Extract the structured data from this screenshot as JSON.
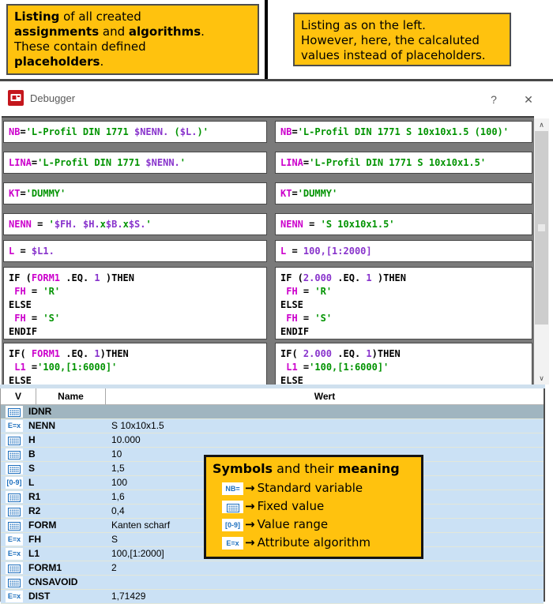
{
  "callouts": {
    "left": {
      "segments": [
        {
          "b": 1,
          "t": "Listing"
        },
        {
          "b": 0,
          "t": " of all created\n"
        },
        {
          "b": 1,
          "t": "assignments"
        },
        {
          "b": 0,
          "t": " and "
        },
        {
          "b": 1,
          "t": "algorithms"
        },
        {
          "b": 0,
          "t": ".\nThese contain defined\n"
        },
        {
          "b": 1,
          "t": "placeholders"
        },
        {
          "b": 0,
          "t": "."
        }
      ]
    },
    "right": {
      "segments": [
        {
          "b": 0,
          "t": "Listing as on the left.\nHowever, here, the calcaluted\nvalues instead of placeholders."
        }
      ]
    }
  },
  "window": {
    "title": "Debugger",
    "help_label": "?",
    "close_label": "✕"
  },
  "scrollbar": {
    "up": "∧",
    "down": "∨"
  },
  "code": {
    "rows": [
      {
        "left": [
          {
            "c": "v",
            "t": "NB"
          },
          {
            "c": "d",
            "t": "="
          },
          {
            "c": "s",
            "t": "'L-Profil DIN 1771 "
          },
          {
            "c": "p",
            "t": "$NENN."
          },
          {
            "c": "s",
            "t": " ("
          },
          {
            "c": "p",
            "t": "$L."
          },
          {
            "c": "s",
            "t": ")'"
          }
        ],
        "right": [
          {
            "c": "v",
            "t": "NB"
          },
          {
            "c": "d",
            "t": "="
          },
          {
            "c": "s",
            "t": "'L-Profil DIN 1771 S 10x10x1.5 (100)'"
          }
        ]
      },
      {
        "left": [
          {
            "c": "v",
            "t": "LINA"
          },
          {
            "c": "d",
            "t": "="
          },
          {
            "c": "s",
            "t": "'L-Profil DIN 1771 "
          },
          {
            "c": "p",
            "t": "$NENN."
          },
          {
            "c": "s",
            "t": "'"
          }
        ],
        "right": [
          {
            "c": "v",
            "t": "LINA"
          },
          {
            "c": "d",
            "t": "="
          },
          {
            "c": "s",
            "t": "'L-Profil DIN 1771 S 10x10x1.5'"
          }
        ]
      },
      {
        "left": [
          {
            "c": "v",
            "t": "KT"
          },
          {
            "c": "d",
            "t": "="
          },
          {
            "c": "s",
            "t": "'DUMMY'"
          }
        ],
        "right": [
          {
            "c": "v",
            "t": "KT"
          },
          {
            "c": "d",
            "t": "="
          },
          {
            "c": "s",
            "t": "'DUMMY'"
          }
        ]
      },
      {
        "left": [
          {
            "c": "v",
            "t": "NENN"
          },
          {
            "c": "d",
            "t": " = "
          },
          {
            "c": "s",
            "t": "'"
          },
          {
            "c": "p",
            "t": "$FH."
          },
          {
            "c": "s",
            "t": " "
          },
          {
            "c": "p",
            "t": "$H."
          },
          {
            "c": "s",
            "t": "x"
          },
          {
            "c": "p",
            "t": "$B."
          },
          {
            "c": "s",
            "t": "x"
          },
          {
            "c": "p",
            "t": "$S."
          },
          {
            "c": "s",
            "t": "'"
          }
        ],
        "right": [
          {
            "c": "v",
            "t": "NENN"
          },
          {
            "c": "d",
            "t": " = "
          },
          {
            "c": "s",
            "t": "'S 10x10x1.5'"
          }
        ]
      },
      {
        "left": [
          {
            "c": "v",
            "t": "L"
          },
          {
            "c": "d",
            "t": " = "
          },
          {
            "c": "p",
            "t": "$L1."
          }
        ],
        "right": [
          {
            "c": "v",
            "t": "L"
          },
          {
            "c": "d",
            "t": " = "
          },
          {
            "c": "p",
            "t": "100,[1:2000]"
          }
        ]
      },
      {
        "left": [
          {
            "c": "k",
            "t": "IF"
          },
          {
            "c": "d",
            "t": " ("
          },
          {
            "c": "v",
            "t": "FORM1"
          },
          {
            "c": "d",
            "t": " "
          },
          {
            "c": "k",
            "t": ".EQ."
          },
          {
            "c": "d",
            "t": " "
          },
          {
            "c": "p",
            "t": "1"
          },
          {
            "c": "d",
            "t": " )"
          },
          {
            "c": "k",
            "t": "THEN"
          },
          {
            "c": "d",
            "t": "\n "
          },
          {
            "c": "v",
            "t": "FH"
          },
          {
            "c": "d",
            "t": " = "
          },
          {
            "c": "s",
            "t": "'R'"
          },
          {
            "c": "d",
            "t": "\n"
          },
          {
            "c": "k",
            "t": "ELSE"
          },
          {
            "c": "d",
            "t": "\n "
          },
          {
            "c": "v",
            "t": "FH"
          },
          {
            "c": "d",
            "t": " = "
          },
          {
            "c": "s",
            "t": "'S'"
          },
          {
            "c": "d",
            "t": "\n"
          },
          {
            "c": "k",
            "t": "ENDIF"
          }
        ],
        "right": [
          {
            "c": "k",
            "t": "IF"
          },
          {
            "c": "d",
            "t": " ("
          },
          {
            "c": "p",
            "t": "2.000"
          },
          {
            "c": "d",
            "t": " "
          },
          {
            "c": "k",
            "t": ".EQ."
          },
          {
            "c": "d",
            "t": " "
          },
          {
            "c": "p",
            "t": "1"
          },
          {
            "c": "d",
            "t": " )"
          },
          {
            "c": "k",
            "t": "THEN"
          },
          {
            "c": "d",
            "t": "\n "
          },
          {
            "c": "v",
            "t": "FH"
          },
          {
            "c": "d",
            "t": " = "
          },
          {
            "c": "s",
            "t": "'R'"
          },
          {
            "c": "d",
            "t": "\n"
          },
          {
            "c": "k",
            "t": "ELSE"
          },
          {
            "c": "d",
            "t": "\n "
          },
          {
            "c": "v",
            "t": "FH"
          },
          {
            "c": "d",
            "t": " = "
          },
          {
            "c": "s",
            "t": "'S'"
          },
          {
            "c": "d",
            "t": "\n"
          },
          {
            "c": "k",
            "t": "ENDIF"
          }
        ]
      },
      {
        "left": [
          {
            "c": "k",
            "t": "IF"
          },
          {
            "c": "d",
            "t": "( "
          },
          {
            "c": "v",
            "t": "FORM1"
          },
          {
            "c": "d",
            "t": " "
          },
          {
            "c": "k",
            "t": ".EQ."
          },
          {
            "c": "d",
            "t": " "
          },
          {
            "c": "p",
            "t": "1"
          },
          {
            "c": "d",
            "t": ")"
          },
          {
            "c": "k",
            "t": "THEN"
          },
          {
            "c": "d",
            "t": "\n "
          },
          {
            "c": "v",
            "t": "L1"
          },
          {
            "c": "d",
            "t": " ="
          },
          {
            "c": "s",
            "t": "'100,[1:6000]'"
          },
          {
            "c": "d",
            "t": "\n"
          },
          {
            "c": "k",
            "t": "ELSE"
          }
        ],
        "right": [
          {
            "c": "k",
            "t": "IF"
          },
          {
            "c": "d",
            "t": "( "
          },
          {
            "c": "p",
            "t": "2.000"
          },
          {
            "c": "d",
            "t": " "
          },
          {
            "c": "k",
            "t": ".EQ."
          },
          {
            "c": "d",
            "t": " "
          },
          {
            "c": "p",
            "t": "1"
          },
          {
            "c": "d",
            "t": ")"
          },
          {
            "c": "k",
            "t": "THEN"
          },
          {
            "c": "d",
            "t": "\n "
          },
          {
            "c": "v",
            "t": "L1"
          },
          {
            "c": "d",
            "t": " ="
          },
          {
            "c": "s",
            "t": "'100,[1:6000]'"
          },
          {
            "c": "d",
            "t": "\n"
          },
          {
            "c": "k",
            "t": "ELSE"
          }
        ]
      }
    ]
  },
  "table": {
    "headers": [
      "V",
      "Name",
      "Wert"
    ],
    "icons": {
      "fixed": "",
      "algo": "E=x",
      "range": "[0-9]",
      "nb": "NB="
    },
    "rows": [
      {
        "icon": "fixed",
        "name": "IDNR",
        "wert": "",
        "selected": true
      },
      {
        "icon": "algo",
        "name": "NENN",
        "wert": "S 10x10x1.5",
        "selected": false
      },
      {
        "icon": "fixed",
        "name": "H",
        "wert": "10.000",
        "selected": false
      },
      {
        "icon": "fixed",
        "name": "B",
        "wert": "10",
        "selected": false
      },
      {
        "icon": "fixed",
        "name": "S",
        "wert": "1,5",
        "selected": false
      },
      {
        "icon": "range",
        "name": "L",
        "wert": "100",
        "selected": false
      },
      {
        "icon": "fixed",
        "name": "R1",
        "wert": "1,6",
        "selected": false
      },
      {
        "icon": "fixed",
        "name": "R2",
        "wert": "0,4",
        "selected": false
      },
      {
        "icon": "fixed",
        "name": "FORM",
        "wert": "Kanten scharf",
        "selected": false
      },
      {
        "icon": "algo",
        "name": "FH",
        "wert": "S",
        "selected": false
      },
      {
        "icon": "algo",
        "name": "L1",
        "wert": "100,[1:2000]",
        "selected": false
      },
      {
        "icon": "fixed",
        "name": "FORM1",
        "wert": "2",
        "selected": false
      },
      {
        "icon": "fixed",
        "name": "CNSAVOID",
        "wert": "",
        "selected": false
      },
      {
        "icon": "algo",
        "name": "DIST",
        "wert": "1,71429",
        "selected": false
      }
    ]
  },
  "legend": {
    "title_segments": [
      {
        "b": 1,
        "t": "Symbols"
      },
      {
        "b": 0,
        "t": " and their "
      },
      {
        "b": 1,
        "t": "meaning"
      }
    ],
    "arrow": "→",
    "items": [
      {
        "icon": "nb",
        "label": "Standard variable"
      },
      {
        "icon": "fixed",
        "label": "Fixed value"
      },
      {
        "icon": "range",
        "label": "Value range"
      },
      {
        "icon": "algo",
        "label": "Attribute algorithm"
      }
    ]
  },
  "colors": {
    "callout_yellow": "#FFC20E",
    "icon_blue": "#1d6fbe",
    "var_magenta": "#cc00cc",
    "string_green": "#009300",
    "placeholder_purple": "#8833cc",
    "selected_row": "#a0b5c0",
    "row_blue": "#cbe1f5"
  }
}
